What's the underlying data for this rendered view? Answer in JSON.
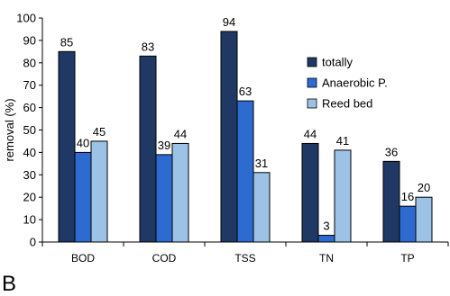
{
  "chart_data": {
    "type": "bar",
    "ylabel": "removal (%)",
    "xlabel": "",
    "ylim": [
      0,
      100
    ],
    "yticks": [
      0,
      10,
      20,
      30,
      40,
      50,
      60,
      70,
      80,
      90,
      100
    ],
    "categories": [
      "BOD",
      "COD",
      "TSS",
      "TN",
      "TP"
    ],
    "series": [
      {
        "name": "totally",
        "color": "#1f3864",
        "values": [
          85,
          83,
          94,
          44,
          36
        ]
      },
      {
        "name": "Anaerobic P.",
        "color": "#2e6bd0",
        "values": [
          40,
          39,
          63,
          3,
          16
        ]
      },
      {
        "name": "Reed bed",
        "color": "#9cc3e6",
        "values": [
          45,
          44,
          31,
          41,
          20
        ]
      }
    ],
    "data_labels": true,
    "grid": false,
    "legend_position": "right"
  },
  "corner_label": "B"
}
